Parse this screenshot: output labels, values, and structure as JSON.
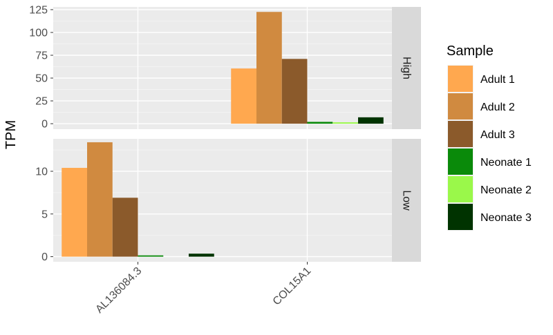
{
  "chart_data": {
    "type": "bar",
    "ylabel": "TPM",
    "legend_title": "Sample",
    "legend_position": "right",
    "categories": [
      "AL136084.3",
      "COL15A1"
    ],
    "series_colors": {
      "Adult 1": "#FFA84F",
      "Adult 2": "#D08A40",
      "Adult 3": "#8B5A2B",
      "Neonate 1": "#0A8A0A",
      "Neonate 2": "#9AF84A",
      "Neonate 3": "#003300"
    },
    "legend": [
      "Adult 1",
      "Adult 2",
      "Adult 3",
      "Neonate 1",
      "Neonate 2",
      "Neonate 3"
    ],
    "panels": [
      {
        "label": "High",
        "ylim": [
          -6,
          128
        ],
        "yticks": [
          0,
          25,
          50,
          75,
          100,
          125
        ],
        "series": [
          {
            "name": "Adult 1",
            "values": [
              null,
              60.5
            ]
          },
          {
            "name": "Adult 2",
            "values": [
              null,
              122.5
            ]
          },
          {
            "name": "Adult 3",
            "values": [
              null,
              71.0
            ]
          },
          {
            "name": "Neonate 1",
            "values": [
              null,
              2.0
            ]
          },
          {
            "name": "Neonate 2",
            "values": [
              null,
              1.5
            ]
          },
          {
            "name": "Neonate 3",
            "values": [
              null,
              7.0
            ]
          }
        ]
      },
      {
        "label": "Low",
        "ylim": [
          -0.6,
          13.8
        ],
        "yticks": [
          0,
          5,
          10
        ],
        "series": [
          {
            "name": "Adult 1",
            "values": [
              10.4,
              null
            ]
          },
          {
            "name": "Adult 2",
            "values": [
              13.4,
              null
            ]
          },
          {
            "name": "Adult 3",
            "values": [
              6.9,
              null
            ]
          },
          {
            "name": "Neonate 1",
            "values": [
              0.15,
              null
            ]
          },
          {
            "name": "Neonate 2",
            "values": [
              0.0,
              null
            ]
          },
          {
            "name": "Neonate 3",
            "values": [
              0.35,
              null
            ]
          }
        ]
      }
    ]
  }
}
